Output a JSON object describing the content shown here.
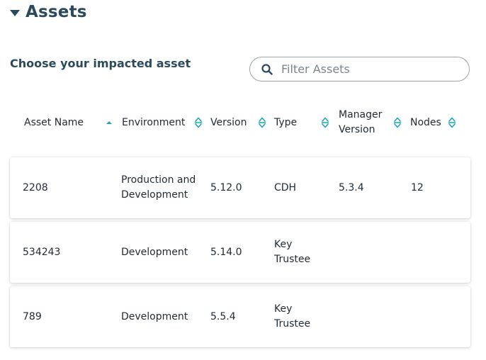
{
  "section": {
    "title": "Assets"
  },
  "subtitle": "Choose your impacted asset",
  "filter": {
    "placeholder": "Filter Assets",
    "value": ""
  },
  "colors": {
    "heading": "#2b4a5c",
    "sort_active": "#1aa6b7",
    "sort_inactive": "#1aa6b7"
  },
  "columns": [
    {
      "label": "Asset Name",
      "label2": "",
      "sort": "ascending"
    },
    {
      "label": "Environment",
      "label2": "",
      "sort": "none"
    },
    {
      "label": "Version",
      "label2": "",
      "sort": "none"
    },
    {
      "label": "Type",
      "label2": "",
      "sort": "none"
    },
    {
      "label": "Manager",
      "label2": "Version",
      "sort": "none"
    },
    {
      "label": "Nodes",
      "label2": "",
      "sort": "none"
    }
  ],
  "rows": [
    {
      "name": "2208",
      "env1": "Production and",
      "env2": "Development",
      "version": "5.12.0",
      "type1": "CDH",
      "type2": "",
      "manager": "5.3.4",
      "nodes": "12"
    },
    {
      "name": "534243",
      "env1": "Development",
      "env2": "",
      "version": "5.14.0",
      "type1": "Key",
      "type2": "Trustee",
      "manager": "",
      "nodes": ""
    },
    {
      "name": "789",
      "env1": "Development",
      "env2": "",
      "version": "5.5.4",
      "type1": "Key",
      "type2": "Trustee",
      "manager": "",
      "nodes": ""
    }
  ]
}
